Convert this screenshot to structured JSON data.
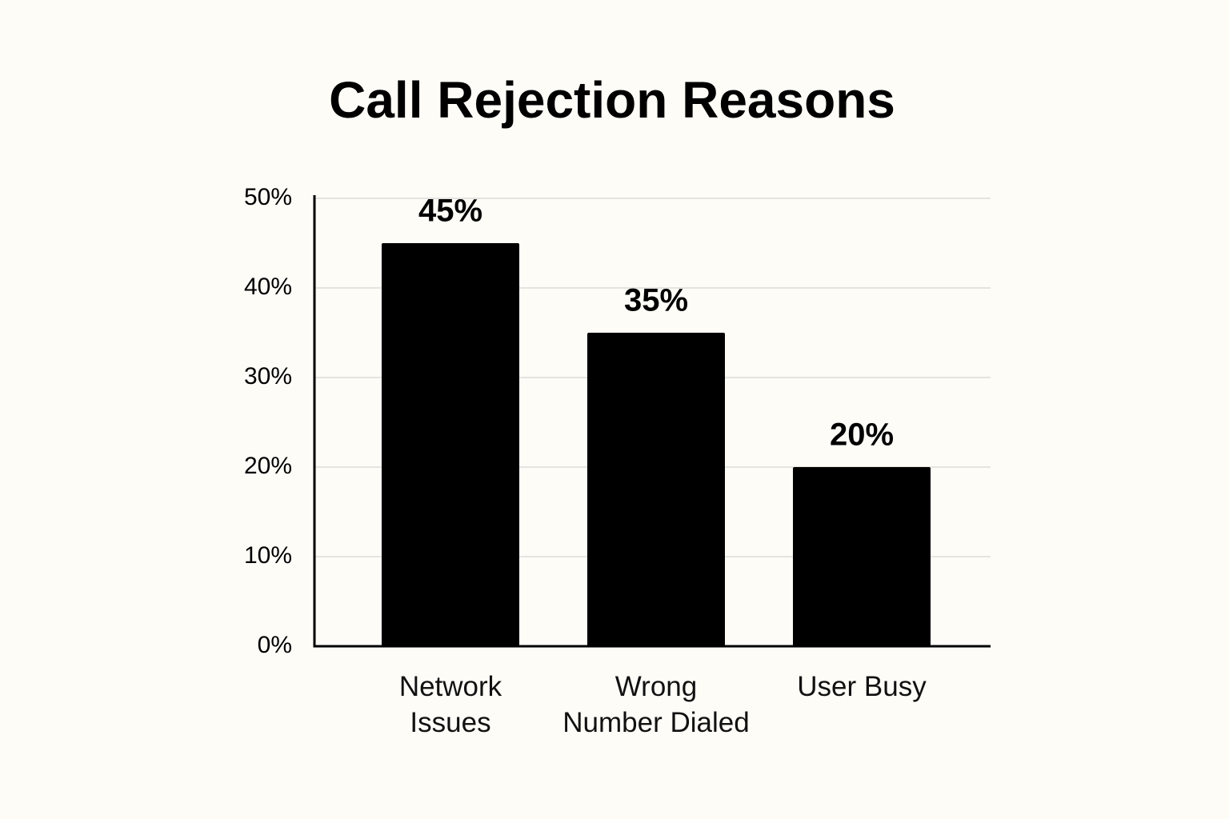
{
  "chart_data": {
    "type": "bar",
    "title": "Call Rejection Reasons",
    "categories": [
      "Network\nIssues",
      "Wrong\nNumber Dialed",
      "User Busy"
    ],
    "values": [
      45,
      35,
      20
    ],
    "value_labels": [
      "45%",
      "35%",
      "20%"
    ],
    "color": "#000000",
    "ylim": [
      0,
      50
    ],
    "yticks": [
      {
        "value": 0,
        "label": "0%"
      },
      {
        "value": 10,
        "label": "10%"
      },
      {
        "value": 20,
        "label": "20%"
      },
      {
        "value": 30,
        "label": "30%"
      },
      {
        "value": 40,
        "label": "40%"
      },
      {
        "value": 50,
        "label": "50%"
      }
    ],
    "grid": true
  }
}
